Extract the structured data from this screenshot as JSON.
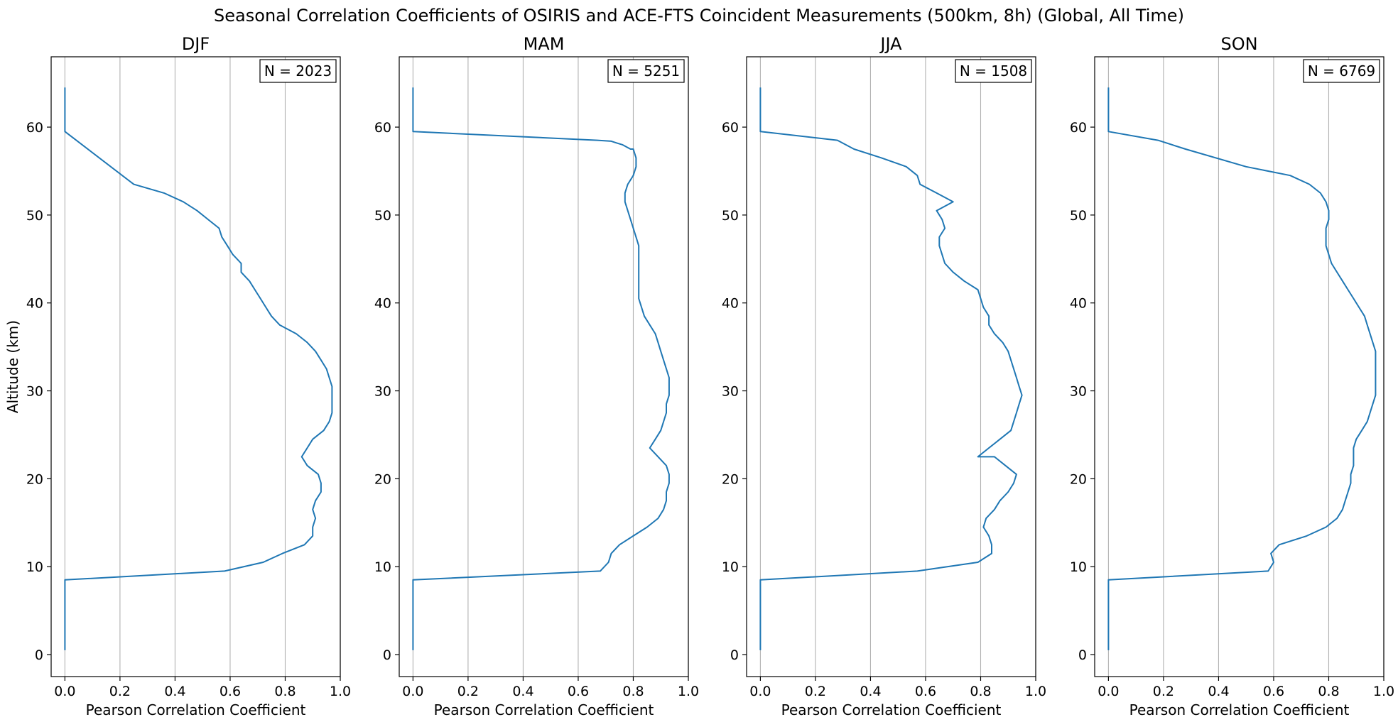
{
  "figure": {
    "title": "Seasonal Correlation Coefficients of OSIRIS and ACE-FTS Coincident Measurements (500km, 8h) (Global, All Time)"
  },
  "chart_data": [
    {
      "type": "line",
      "title": "DJF",
      "annotation": "N = 2023",
      "xlabel": "Pearson Correlation Coefficient",
      "ylabel": "Altitude (km)",
      "xlim": [
        -0.05,
        1.0
      ],
      "ylim": [
        -2.5,
        68
      ],
      "xticks": [
        "0.0",
        "0.2",
        "0.4",
        "0.6",
        "0.8",
        "1.0"
      ],
      "yticks": [
        "0",
        "10",
        "20",
        "30",
        "40",
        "50",
        "60"
      ],
      "grid": "vertical",
      "line_color": "#1f77b4",
      "series": [
        {
          "x": [
            0,
            0,
            0,
            0,
            0,
            0,
            0,
            0,
            0,
            0.58,
            0.72,
            0.79,
            0.87,
            0.9,
            0.9,
            0.91,
            0.9,
            0.91,
            0.93,
            0.93,
            0.92,
            0.88,
            0.86,
            0.88,
            0.9,
            0.94,
            0.96,
            0.97,
            0.97,
            0.97,
            0.97,
            0.96,
            0.95,
            0.93,
            0.91,
            0.88,
            0.84,
            0.78,
            0.75,
            0.73,
            0.71,
            0.69,
            0.67,
            0.64,
            0.64,
            0.61,
            0.59,
            0.57,
            0.56,
            0.52,
            0.48,
            0.43,
            0.36,
            0.25,
            0,
            0,
            0,
            0,
            0,
            0
          ],
          "y": [
            0.5,
            1.5,
            2.5,
            3.5,
            4.5,
            5.5,
            6.5,
            7.5,
            8.5,
            9.5,
            10.5,
            11.5,
            12.5,
            13.5,
            14.5,
            15.5,
            16.5,
            17.5,
            18.5,
            19.5,
            20.5,
            21.5,
            22.5,
            23.5,
            24.5,
            25.5,
            26.5,
            27.5,
            28.5,
            29.5,
            30.5,
            31.5,
            32.5,
            33.5,
            34.5,
            35.5,
            36.5,
            37.5,
            38.5,
            39.5,
            40.5,
            41.5,
            42.5,
            43.5,
            44.5,
            45.5,
            46.5,
            47.5,
            48.5,
            49.5,
            50.5,
            51.5,
            52.5,
            53.5,
            59.5,
            60.5,
            61.5,
            62.5,
            63.5,
            64.5
          ]
        }
      ]
    },
    {
      "type": "line",
      "title": "MAM",
      "annotation": "N = 5251",
      "xlabel": "Pearson Correlation Coefficient",
      "ylabel": "",
      "xlim": [
        -0.05,
        1.0
      ],
      "ylim": [
        -2.5,
        68
      ],
      "xticks": [
        "0.0",
        "0.2",
        "0.4",
        "0.6",
        "0.8",
        "1.0"
      ],
      "yticks": [
        "0",
        "10",
        "20",
        "30",
        "40",
        "50",
        "60"
      ],
      "grid": "vertical",
      "line_color": "#1f77b4",
      "series": [
        {
          "x": [
            0,
            0,
            0,
            0,
            0,
            0,
            0,
            0,
            0,
            0.68,
            0.71,
            0.72,
            0.75,
            0.8,
            0.85,
            0.89,
            0.91,
            0.92,
            0.92,
            0.93,
            0.93,
            0.92,
            0.89,
            0.86,
            0.88,
            0.9,
            0.91,
            0.92,
            0.92,
            0.93,
            0.93,
            0.93,
            0.92,
            0.91,
            0.9,
            0.89,
            0.88,
            0.86,
            0.84,
            0.83,
            0.82,
            0.82,
            0.82,
            0.82,
            0.82,
            0.82,
            0.82,
            0.81,
            0.8,
            0.79,
            0.78,
            0.77,
            0.77,
            0.78,
            0.8,
            0.81,
            0.81,
            0.8,
            0.79,
            0.76,
            0.74,
            0.72,
            0.67,
            0,
            0,
            0,
            0,
            0,
            0
          ],
          "y": [
            0.5,
            1.5,
            2.5,
            3.5,
            4.5,
            5.5,
            6.5,
            7.5,
            8.5,
            9.5,
            10.5,
            11.5,
            12.5,
            13.5,
            14.5,
            15.5,
            16.5,
            17.5,
            18.5,
            19.5,
            20.5,
            21.5,
            22.5,
            23.5,
            24.5,
            25.5,
            26.5,
            27.5,
            28.5,
            29.5,
            30.5,
            31.5,
            32.5,
            33.5,
            34.5,
            35.5,
            36.5,
            37.5,
            38.5,
            39.5,
            40.5,
            41.5,
            42.5,
            43.5,
            44.5,
            45.5,
            46.5,
            47.5,
            48.5,
            49.5,
            50.5,
            51.5,
            52.5,
            53.5,
            54.5,
            55.5,
            56.5,
            57.5,
            57.5,
            58.0,
            58.2,
            58.4,
            58.5,
            59.5,
            60.5,
            61.5,
            62.5,
            63.5,
            64.5
          ]
        }
      ]
    },
    {
      "type": "line",
      "title": "JJA",
      "annotation": "N = 1508",
      "xlabel": "Pearson Correlation Coefficient",
      "ylabel": "",
      "xlim": [
        -0.05,
        1.0
      ],
      "ylim": [
        -2.5,
        68
      ],
      "xticks": [
        "0.0",
        "0.2",
        "0.4",
        "0.6",
        "0.8",
        "1.0"
      ],
      "yticks": [
        "0",
        "10",
        "20",
        "30",
        "40",
        "50",
        "60"
      ],
      "grid": "vertical",
      "line_color": "#1f77b4",
      "series": [
        {
          "x": [
            0,
            0,
            0,
            0,
            0,
            0,
            0,
            0,
            0,
            0.57,
            0.79,
            0.84,
            0.84,
            0.83,
            0.81,
            0.82,
            0.85,
            0.87,
            0.9,
            0.92,
            0.93,
            0.89,
            0.85,
            0.79,
            0.83,
            0.87,
            0.91,
            0.92,
            0.93,
            0.94,
            0.95,
            0.94,
            0.93,
            0.92,
            0.91,
            0.9,
            0.88,
            0.85,
            0.83,
            0.83,
            0.81,
            0.79,
            0.74,
            0.7,
            0.67,
            0.66,
            0.65,
            0.65,
            0.67,
            0.66,
            0.64,
            0.7,
            0.64,
            0.58,
            0.57,
            0.53,
            0.44,
            0.34,
            0.28,
            0,
            0,
            0,
            0,
            0,
            0
          ],
          "y": [
            0.5,
            1.5,
            2.5,
            3.5,
            4.5,
            5.5,
            6.5,
            7.5,
            8.5,
            9.5,
            10.5,
            11.5,
            12.5,
            13.5,
            14.5,
            15.5,
            16.5,
            17.5,
            18.5,
            19.5,
            20.5,
            21.5,
            22.5,
            22.5,
            23.5,
            24.5,
            25.5,
            26.5,
            27.5,
            28.5,
            29.5,
            30.5,
            31.5,
            32.5,
            33.5,
            34.5,
            35.5,
            36.5,
            37.5,
            38.5,
            39.5,
            41.5,
            42.5,
            43.5,
            44.5,
            45.5,
            46.5,
            47.5,
            48.5,
            49.5,
            50.5,
            51.5,
            52.5,
            53.5,
            54.5,
            55.5,
            56.5,
            57.5,
            58.5,
            59.5,
            60.5,
            61.5,
            62.5,
            63.5,
            64.5
          ]
        }
      ]
    },
    {
      "type": "line",
      "title": "SON",
      "annotation": "N = 6769",
      "xlabel": "Pearson Correlation Coefficient",
      "ylabel": "",
      "xlim": [
        -0.05,
        1.0
      ],
      "ylim": [
        -2.5,
        68
      ],
      "xticks": [
        "0.0",
        "0.2",
        "0.4",
        "0.6",
        "0.8",
        "1.0"
      ],
      "yticks": [
        "0",
        "10",
        "20",
        "30",
        "40",
        "50",
        "60"
      ],
      "grid": "vertical",
      "line_color": "#1f77b4",
      "series": [
        {
          "x": [
            0,
            0,
            0,
            0,
            0,
            0,
            0,
            0,
            0,
            0.58,
            0.6,
            0.59,
            0.62,
            0.72,
            0.79,
            0.83,
            0.85,
            0.86,
            0.87,
            0.88,
            0.88,
            0.89,
            0.89,
            0.89,
            0.9,
            0.92,
            0.94,
            0.95,
            0.96,
            0.97,
            0.97,
            0.97,
            0.97,
            0.97,
            0.97,
            0.96,
            0.95,
            0.94,
            0.93,
            0.91,
            0.89,
            0.87,
            0.85,
            0.83,
            0.81,
            0.8,
            0.79,
            0.79,
            0.79,
            0.8,
            0.8,
            0.79,
            0.77,
            0.73,
            0.66,
            0.5,
            0.28,
            0.18,
            0,
            0,
            0,
            0,
            0,
            0
          ],
          "y": [
            0.5,
            1.5,
            2.5,
            3.5,
            4.5,
            5.5,
            6.5,
            7.5,
            8.5,
            9.5,
            10.5,
            11.5,
            12.5,
            13.5,
            14.5,
            15.5,
            16.5,
            17.5,
            18.5,
            19.5,
            20.5,
            21.5,
            22.5,
            23.5,
            24.5,
            25.5,
            26.5,
            27.5,
            28.5,
            29.5,
            30.5,
            31.5,
            32.5,
            33.5,
            34.5,
            35.5,
            36.5,
            37.5,
            38.5,
            39.5,
            40.5,
            41.5,
            42.5,
            43.5,
            44.5,
            45.5,
            46.5,
            47.5,
            48.5,
            49.5,
            50.5,
            51.5,
            52.5,
            53.5,
            54.5,
            55.5,
            57.5,
            58.5,
            59.5,
            60.5,
            61.5,
            62.5,
            63.5,
            64.5
          ]
        }
      ]
    }
  ]
}
